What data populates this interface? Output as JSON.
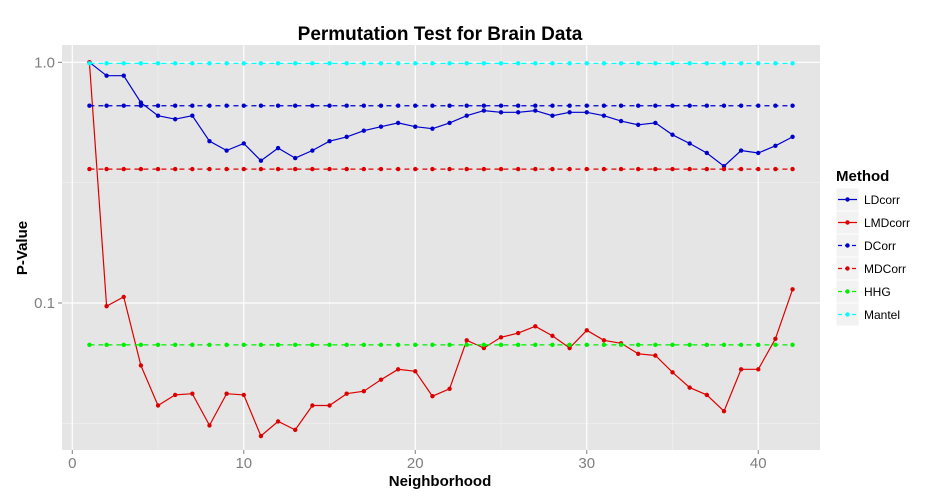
{
  "chart_data": {
    "type": "line",
    "title": "Permutation Test for Brain Data",
    "xlabel": "Neighborhood",
    "ylabel": "P-Value",
    "xlim": [
      -0.6,
      43.6
    ],
    "ylim": [
      0.0245,
      1.18
    ],
    "log_y": true,
    "grid": true,
    "legend_position": "right",
    "legend_title": "Method",
    "x_ticks": [
      0,
      10,
      20,
      30,
      40
    ],
    "x_tick_labels": [
      "0",
      "10",
      "20",
      "30",
      "40"
    ],
    "y_major_ticks": [
      0.1,
      1.0
    ],
    "y_tick_labels": [
      "0.1",
      "1.0"
    ],
    "y_minor_ticks": [
      0.0316,
      0.316
    ],
    "x": [
      1,
      2,
      3,
      4,
      5,
      6,
      7,
      8,
      9,
      10,
      11,
      12,
      13,
      14,
      15,
      16,
      17,
      18,
      19,
      20,
      21,
      22,
      23,
      24,
      25,
      26,
      27,
      28,
      29,
      30,
      31,
      32,
      33,
      34,
      35,
      36,
      37,
      38,
      39,
      40,
      41,
      42
    ],
    "series": [
      {
        "name": "LDcorr",
        "color": "#0000cc",
        "linestyle": "solid",
        "values": [
          1.0,
          0.88,
          0.88,
          0.68,
          0.6,
          0.58,
          0.6,
          0.47,
          0.43,
          0.46,
          0.39,
          0.44,
          0.4,
          0.43,
          0.47,
          0.49,
          0.52,
          0.54,
          0.56,
          0.54,
          0.53,
          0.56,
          0.6,
          0.63,
          0.62,
          0.62,
          0.63,
          0.6,
          0.62,
          0.62,
          0.6,
          0.57,
          0.55,
          0.56,
          0.5,
          0.46,
          0.42,
          0.37,
          0.43,
          0.42,
          0.45,
          0.49
        ]
      },
      {
        "name": "LMDcorr",
        "color": "#dd0000",
        "linestyle": "solid",
        "values": [
          1.0,
          0.097,
          0.106,
          0.055,
          0.0375,
          0.0415,
          0.042,
          0.031,
          0.042,
          0.0415,
          0.028,
          0.0322,
          0.0297,
          0.0375,
          0.0375,
          0.042,
          0.043,
          0.048,
          0.053,
          0.052,
          0.041,
          0.044,
          0.07,
          0.065,
          0.072,
          0.075,
          0.08,
          0.073,
          0.065,
          0.077,
          0.07,
          0.068,
          0.0615,
          0.0605,
          0.0515,
          0.0445,
          0.0415,
          0.0355,
          0.053,
          0.053,
          0.071,
          0.114
        ]
      },
      {
        "name": "DCorr",
        "color": "#0000cc",
        "linestyle": "dashed",
        "constant": 0.66
      },
      {
        "name": "MDCorr",
        "color": "#dd0000",
        "linestyle": "dashed",
        "constant": 0.36
      },
      {
        "name": "HHG",
        "color": "#00ee00",
        "linestyle": "dashed",
        "constant": 0.067
      },
      {
        "name": "Mantel",
        "color": "#00ffff",
        "linestyle": "dashed",
        "constant": 0.99
      }
    ]
  }
}
